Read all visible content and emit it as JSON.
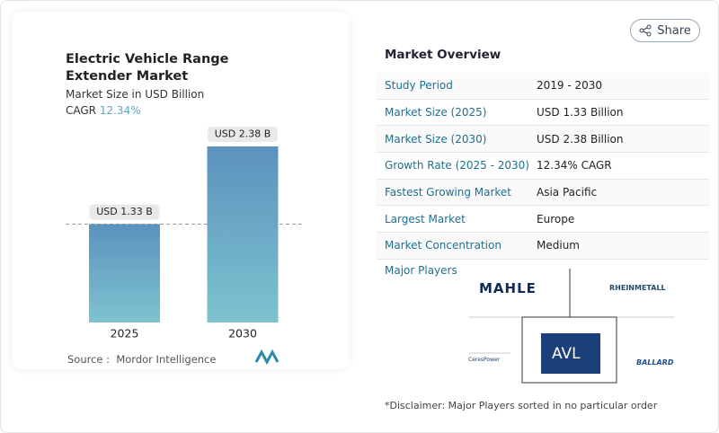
{
  "chart_data": {
    "type": "bar",
    "title": "Electric Vehicle Range Extender Market",
    "subtitle": "Market Size in USD Billion",
    "cagr_label": "CAGR",
    "cagr": "12.34%",
    "categories": [
      "2025",
      "2030"
    ],
    "values": [
      1.33,
      2.38
    ],
    "value_labels": [
      "USD 1.33 B",
      "USD 2.38 B"
    ],
    "source_label": "Source :",
    "source": "Mordor Intelligence"
  },
  "share": "Share",
  "overview": {
    "title": "Market Overview",
    "rows": [
      [
        "Study Period",
        "2019 - 2030"
      ],
      [
        "Market Size (2025)",
        "USD 1.33 Billion"
      ],
      [
        "Market Size (2030)",
        "USD 2.38 Billion"
      ],
      [
        "Growth Rate (2025 - 2030)",
        "12.34% CAGR"
      ],
      [
        "Fastest Growing Market",
        "Asia Pacific"
      ],
      [
        "Largest Market",
        "Europe"
      ],
      [
        "Market Concentration",
        "Medium"
      ]
    ]
  },
  "players": {
    "title": "Major Players",
    "names": [
      "MAHLE",
      "RHEINMETALL",
      "CeresPower",
      "AVL",
      "BALLARD"
    ]
  },
  "disclaimer": "*Disclaimer: Major Players sorted in no particular order"
}
